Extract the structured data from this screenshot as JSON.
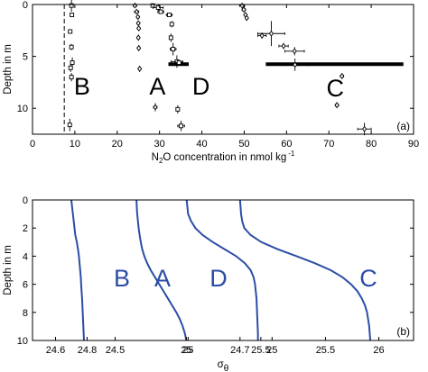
{
  "chart_data": [
    {
      "type": "scatter",
      "panel_label": "(a)",
      "xlabel_prefix": "N",
      "xlabel_sub": "2",
      "xlabel_main": "O concentration in nmol kg",
      "xlabel_sup": "-1",
      "ylabel": "Depth in m",
      "xlim": [
        0,
        90
      ],
      "ylim": [
        12.5,
        0
      ],
      "xticks": [
        0,
        10,
        20,
        30,
        40,
        50,
        60,
        70,
        80,
        90
      ],
      "yticks": [
        0,
        5,
        10
      ],
      "grid": false,
      "reference_line": {
        "x": 7.5,
        "style": "dashed"
      },
      "series": [
        {
          "name": "B",
          "label_pos": {
            "x": 11.7,
            "y": 7.8
          },
          "marker": "square",
          "points": [
            {
              "x": 9.2,
              "y": 0.1,
              "xerr": 0.2,
              "yerr": 0.6
            },
            {
              "x": 9.3,
              "y": 1.0,
              "xerr": 0.2,
              "yerr": 0.2
            },
            {
              "x": 8.9,
              "y": 2.6,
              "xerr": 0.2,
              "yerr": 0.2
            },
            {
              "x": 9.2,
              "y": 4.1,
              "xerr": 0.3,
              "yerr": 0.3
            },
            {
              "x": 9.4,
              "y": 5.6,
              "xerr": 0.2,
              "yerr": 0.5
            },
            {
              "x": 9.0,
              "y": 6.1,
              "xerr": 0.3,
              "yerr": 0.4
            },
            {
              "x": 9.2,
              "y": 7.0,
              "xerr": 0.2,
              "yerr": 0.4
            },
            {
              "x": 8.8,
              "y": 11.6,
              "xerr": 0.3,
              "yerr": 0.6
            }
          ]
        },
        {
          "name": "A",
          "label_pos": {
            "x": 29.5,
            "y": 7.8
          },
          "marker": "diamond",
          "points": [
            {
              "x": 24.2,
              "y": 0.1,
              "xerr": 0.4,
              "yerr": 0.2
            },
            {
              "x": 24.6,
              "y": 0.7,
              "xerr": 0.5,
              "yerr": 0.2
            },
            {
              "x": 24.9,
              "y": 1.2,
              "xerr": 0.3,
              "yerr": 0.2
            },
            {
              "x": 25.0,
              "y": 1.8,
              "xerr": 0.3,
              "yerr": 0.2
            },
            {
              "x": 25.1,
              "y": 2.3,
              "xerr": 0.3,
              "yerr": 0.2
            },
            {
              "x": 25.0,
              "y": 3.2,
              "xerr": 0.3,
              "yerr": 0.3
            },
            {
              "x": 25.1,
              "y": 4.2,
              "xerr": 0.3,
              "yerr": 0.3
            },
            {
              "x": 25.3,
              "y": 6.2,
              "xerr": 0.3,
              "yerr": 0.3
            },
            {
              "x": 29.0,
              "y": 9.9,
              "xerr": 0.4,
              "yerr": 0.4
            }
          ]
        },
        {
          "name": "D",
          "label_pos": {
            "x": 39.8,
            "y": 7.8
          },
          "marker": "square",
          "points": [
            {
              "x": 28.4,
              "y": 0.1,
              "xerr": 0.3,
              "yerr": 0.2
            },
            {
              "x": 29.7,
              "y": 0.3,
              "xerr": 1.2,
              "yerr": 0.3
            },
            {
              "x": 30.3,
              "y": 0.7,
              "xerr": 0.7,
              "yerr": 0.2
            },
            {
              "x": 32.3,
              "y": 1.0,
              "xerr": 0.7,
              "yerr": 0.2
            },
            {
              "x": 32.9,
              "y": 1.9,
              "xerr": 0.3,
              "yerr": 0.3
            },
            {
              "x": 32.7,
              "y": 3.2,
              "xerr": 0.3,
              "yerr": 0.4
            },
            {
              "x": 33.2,
              "y": 4.3,
              "xerr": 0.7,
              "yerr": 0.6
            },
            {
              "x": 34.1,
              "y": 5.5,
              "xerr": 1.4,
              "yerr": 0.6
            },
            {
              "x": 34.6,
              "y": 5.6,
              "xerr": 0.8,
              "yerr": 0.3
            },
            {
              "x": 34.3,
              "y": 10.1,
              "xerr": 0.3,
              "yerr": 0.4
            },
            {
              "x": 35.1,
              "y": 11.7,
              "xerr": 0.8,
              "yerr": 0.5
            }
          ]
        },
        {
          "name": "C",
          "label_pos": {
            "x": 71.5,
            "y": 8.0
          },
          "marker": "diamond",
          "points": [
            {
              "x": 49.5,
              "y": 0.1,
              "xerr": 0.6,
              "yerr": 0.2
            },
            {
              "x": 49.9,
              "y": 0.5,
              "xerr": 0.4,
              "yerr": 0.2
            },
            {
              "x": 50.3,
              "y": 1.0,
              "xerr": 0.3,
              "yerr": 0.2
            },
            {
              "x": 50.6,
              "y": 1.3,
              "xerr": 0.3,
              "yerr": 0.2
            },
            {
              "x": 54.2,
              "y": 3.0,
              "xerr": 1.0,
              "yerr": 0.3
            },
            {
              "x": 56.4,
              "y": 2.8,
              "xerr": 3.2,
              "yerr": 1.2
            },
            {
              "x": 59.3,
              "y": 4.0,
              "xerr": 1.1,
              "yerr": 0.3
            },
            {
              "x": 61.9,
              "y": 4.5,
              "xerr": 2.3,
              "yerr": 0.4
            },
            {
              "x": 62.0,
              "y": 5.8,
              "xerr": 3.0,
              "yerr": 0.6
            },
            {
              "x": 73.1,
              "y": 6.9,
              "xerr": 0.4,
              "yerr": 0.3
            },
            {
              "x": 71.9,
              "y": 9.7,
              "xerr": 0.4,
              "yerr": 0.3
            },
            {
              "x": 78.4,
              "y": 12.0,
              "xerr": 1.6,
              "yerr": 0.6
            }
          ]
        }
      ],
      "thick_bars": [
        {
          "series": "D",
          "x0": 32.1,
          "x1": 36.9,
          "y": 5.75
        },
        {
          "series": "C",
          "x0": 55.1,
          "x1": 87.6,
          "y": 5.75
        }
      ]
    },
    {
      "type": "line",
      "panel_label": "(b)",
      "xlabel": "σ",
      "xlabel_sub": "θ",
      "ylabel": "Depth in m",
      "line_color": "#2b4da5",
      "y": [
        0,
        0.5,
        1,
        1.5,
        2,
        2.5,
        3,
        3.5,
        4,
        4.5,
        5,
        5.5,
        6,
        6.5,
        7,
        7.5,
        8,
        8.5,
        9,
        9.5,
        10
      ],
      "ylim": [
        10,
        0
      ],
      "yticks": [
        0,
        2,
        4,
        6,
        8,
        10
      ],
      "series": [
        {
          "name": "B",
          "label_pos": {
            "x": 135,
            "y": 5.5
          },
          "xlim": [
            24.5,
            24.9
          ],
          "xticks": [
            24.6,
            24.8
          ],
          "x": [
            24.7,
            24.705,
            24.71,
            24.715,
            24.72,
            24.725,
            24.735,
            24.742,
            24.748,
            24.752,
            24.756,
            24.76,
            24.762,
            24.765,
            24.768,
            24.77,
            24.772,
            24.774,
            24.776,
            24.778,
            24.78
          ]
        },
        {
          "name": "A",
          "label_pos": {
            "x": 180,
            "y": 5.5
          },
          "xlim": [
            24.3,
            25.15
          ],
          "xticks": [
            24.5,
            25
          ],
          "x": [
            24.65,
            24.652,
            24.655,
            24.66,
            24.665,
            24.672,
            24.68,
            24.69,
            24.705,
            24.725,
            24.75,
            24.78,
            24.81,
            24.84,
            24.87,
            24.9,
            24.93,
            24.955,
            24.975,
            24.99,
            25.0
          ]
        },
        {
          "name": "D",
          "label_pos": {
            "x": 242,
            "y": 5.5
          },
          "xlim": [
            24.7,
            25.6
          ],
          "xticks": [
            25,
            25.5
          ],
          "x": [
            24.99,
            24.995,
            25.0,
            25.02,
            25.05,
            25.1,
            25.17,
            25.25,
            25.33,
            25.39,
            25.43,
            25.45,
            25.46,
            25.465,
            25.47,
            25.472,
            25.474,
            25.476,
            25.478,
            25.48,
            25.48
          ]
        },
        {
          "name": "C",
          "label_pos": {
            "x": 408,
            "y": 5.5
          },
          "xlim": [
            24.6,
            26.3
          ],
          "xticks": [
            24.7,
            25,
            25.5,
            26
          ],
          "x": [
            24.7,
            24.705,
            24.71,
            24.72,
            24.74,
            24.8,
            24.9,
            25.05,
            25.23,
            25.4,
            25.55,
            25.66,
            25.74,
            25.8,
            25.84,
            25.87,
            25.89,
            25.9,
            25.91,
            25.915,
            25.92
          ]
        }
      ],
      "combined_xtick_labels": [
        "24.6",
        "24.8",
        "24.5",
        "25",
        "25.5",
        "24.7",
        "25",
        "25.5",
        "26"
      ]
    }
  ]
}
